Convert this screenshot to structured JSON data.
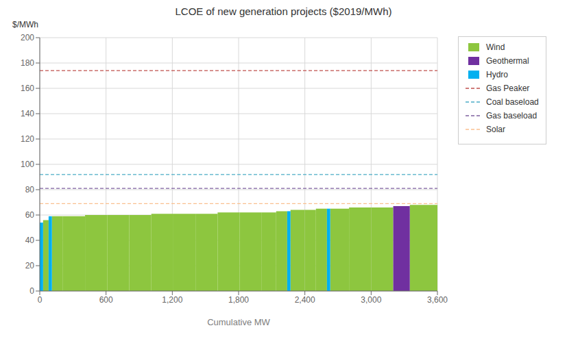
{
  "chart_data": {
    "type": "bar",
    "title": "LCOE of new generation projects ($2019/MWh)",
    "x_label": "Cumulative MW",
    "y_label": "$/MWh",
    "xlim": [
      0,
      3600
    ],
    "ylim": [
      0,
      200
    ],
    "xticks": [
      0,
      600,
      {
        "value": 1200,
        "label": "1,200"
      },
      {
        "value": 1800,
        "label": "1,800"
      },
      {
        "value": 2400,
        "label": "2,400"
      },
      {
        "value": 3000,
        "label": "3,000"
      },
      {
        "value": 3600,
        "label": "3,600"
      }
    ],
    "yticks": [
      0,
      20,
      40,
      60,
      80,
      100,
      120,
      140,
      160,
      180,
      200
    ],
    "grid": true,
    "legend": "right",
    "series": [
      {
        "name": "Wind",
        "type": "bar",
        "color": "#8dc63f",
        "x": [
          30,
          110,
          210,
          410,
          610,
          810,
          1010,
          1210,
          1410,
          1610,
          1810,
          2010,
          2140,
          2270,
          2400,
          2500,
          2630,
          2800,
          3000,
          3350
        ],
        "widths": [
          50,
          100,
          200,
          200,
          200,
          200,
          200,
          200,
          200,
          200,
          200,
          130,
          100,
          130,
          100,
          100,
          170,
          200,
          200,
          250
        ],
        "values": [
          56,
          59,
          59,
          60,
          60,
          60,
          61,
          61,
          61,
          62,
          62,
          62,
          63,
          64,
          64,
          65,
          65,
          66,
          66,
          68
        ]
      },
      {
        "name": "Geothermal",
        "type": "bar",
        "color": "#7030a0",
        "x": [
          3200
        ],
        "widths": [
          150
        ],
        "values": [
          67
        ]
      },
      {
        "name": "Hydro",
        "type": "bar",
        "color": "#00b0f0",
        "x": [
          0,
          80,
          2240,
          2600
        ],
        "widths": [
          30,
          30,
          30,
          30
        ],
        "values": [
          54,
          59,
          63,
          65
        ]
      },
      {
        "name": "Gas Peaker",
        "type": "hline",
        "color": "#c0504d",
        "line_style": "dashed",
        "values": [
          174
        ]
      },
      {
        "name": "Coal baseload",
        "type": "hline",
        "color": "#4bacc6",
        "line_style": "dashed",
        "values": [
          92
        ]
      },
      {
        "name": "Gas baseload",
        "type": "hline",
        "color": "#7f60a0",
        "line_style": "dashed",
        "values": [
          81
        ]
      },
      {
        "name": "Solar",
        "type": "hline",
        "color": "#fac090",
        "line_style": "dashed",
        "values": [
          69
        ]
      }
    ]
  }
}
